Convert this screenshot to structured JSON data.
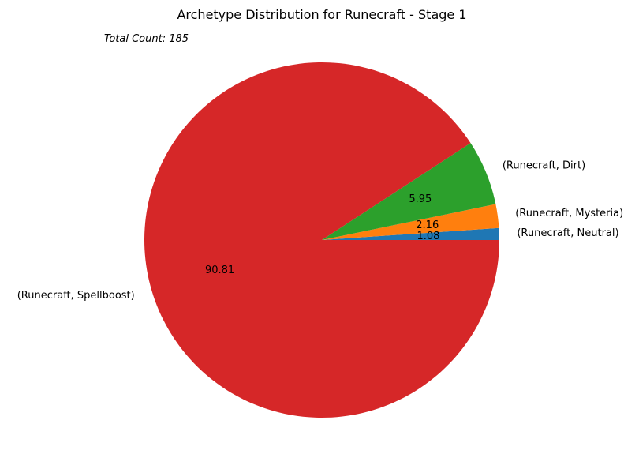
{
  "chart_data": {
    "type": "pie",
    "title": "Archetype Distribution for Runecraft - Stage 1",
    "annotation": "Total Count: 185",
    "slices": [
      {
        "label": "(Runecraft, Neutral)",
        "value": 1.08,
        "display": "1.08",
        "color": "#1f77b4"
      },
      {
        "label": "(Runecraft, Mysteria)",
        "value": 2.16,
        "display": "2.16",
        "color": "#ff7f0e"
      },
      {
        "label": "(Runecraft, Dirt)",
        "value": 5.95,
        "display": "5.95",
        "color": "#2ca02c"
      },
      {
        "label": "(Runecraft, Spellboost)",
        "value": 90.81,
        "display": "90.81",
        "color": "#d62728"
      }
    ],
    "start_angle_deg": 0,
    "direction": "counterclockwise",
    "legend": "none"
  }
}
